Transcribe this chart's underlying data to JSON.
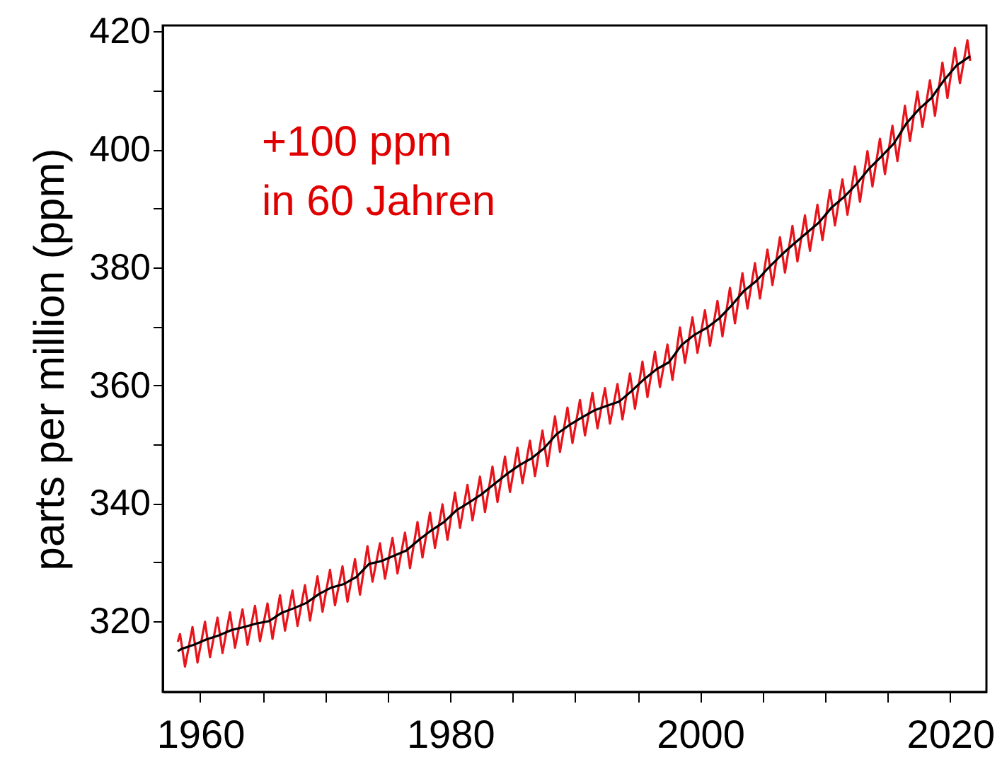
{
  "chart_data": {
    "type": "line",
    "ylabel": "parts per million (ppm)",
    "annotations": [
      "+100 ppm\nin 60 Jahren"
    ],
    "xlim": [
      1957,
      2022.9
    ],
    "ylim": [
      308,
      421
    ],
    "xticks": [
      1960,
      {
        "value": 1965,
        "label": null
      },
      {
        "value": 1970,
        "label": null
      },
      {
        "value": 1975,
        "label": null
      },
      1980,
      {
        "value": 1985,
        "label": null
      },
      {
        "value": 1990,
        "label": null
      },
      {
        "value": 1995,
        "label": null
      },
      2000,
      {
        "value": 2005,
        "label": null
      },
      {
        "value": 2010,
        "label": null
      },
      {
        "value": 2015,
        "label": null
      },
      2020
    ],
    "yticks": [
      320,
      {
        "value": 330,
        "label": null
      },
      340,
      {
        "value": 350,
        "label": null
      },
      360,
      {
        "value": 370,
        "label": null
      },
      380,
      {
        "value": 390,
        "label": null
      },
      400,
      {
        "value": 410,
        "label": null
      },
      420
    ],
    "grid": false,
    "series": [
      {
        "color": "#e8141b",
        "x": [
          1958.2,
          1958.38,
          1958.78,
          1959.38,
          1959.78,
          1960.38,
          1960.78,
          1961.38,
          1961.78,
          1962.38,
          1962.78,
          1963.38,
          1963.78,
          1964.38,
          1964.78,
          1965.38,
          1965.78,
          1966.38,
          1966.78,
          1967.38,
          1967.78,
          1968.38,
          1968.78,
          1969.38,
          1969.78,
          1970.38,
          1970.78,
          1971.38,
          1971.78,
          1972.38,
          1972.78,
          1973.38,
          1973.78,
          1974.38,
          1974.78,
          1975.38,
          1975.78,
          1976.38,
          1976.78,
          1977.38,
          1977.78,
          1978.38,
          1978.78,
          1979.38,
          1979.78,
          1980.38,
          1980.78,
          1981.38,
          1981.78,
          1982.38,
          1982.78,
          1983.38,
          1983.78,
          1984.38,
          1984.78,
          1985.38,
          1985.78,
          1986.38,
          1986.78,
          1987.38,
          1987.78,
          1988.38,
          1988.78,
          1989.38,
          1989.78,
          1990.38,
          1990.78,
          1991.38,
          1991.78,
          1992.38,
          1992.78,
          1993.38,
          1993.78,
          1994.38,
          1994.78,
          1995.38,
          1995.78,
          1996.38,
          1996.78,
          1997.38,
          1997.78,
          1998.38,
          1998.78,
          1999.38,
          1999.78,
          2000.38,
          2000.78,
          2001.38,
          2001.78,
          2002.38,
          2002.78,
          2003.38,
          2003.78,
          2004.38,
          2004.78,
          2005.38,
          2005.78,
          2006.38,
          2006.78,
          2007.38,
          2007.78,
          2008.38,
          2008.78,
          2009.38,
          2009.78,
          2010.38,
          2010.78,
          2011.38,
          2011.78,
          2012.38,
          2012.78,
          2013.38,
          2013.78,
          2014.38,
          2014.78,
          2015.38,
          2015.78,
          2016.38,
          2016.78,
          2017.38,
          2017.78,
          2018.38,
          2018.78,
          2019.38,
          2019.78,
          2020.38,
          2020.78,
          2021.38,
          2021.6
        ],
        "values": [
          316.5,
          317.8,
          312.3,
          319.0,
          313.0,
          319.9,
          313.9,
          320.6,
          314.6,
          321.5,
          315.5,
          322.0,
          316.0,
          322.6,
          316.6,
          323.0,
          317.0,
          324.4,
          318.4,
          325.2,
          319.2,
          326.1,
          320.1,
          327.6,
          321.6,
          328.7,
          322.7,
          329.3,
          323.3,
          330.5,
          324.5,
          332.7,
          326.7,
          333.2,
          327.2,
          334.1,
          328.1,
          335.0,
          329.0,
          336.8,
          330.8,
          338.4,
          332.4,
          339.8,
          333.8,
          341.8,
          335.8,
          343.1,
          337.1,
          344.5,
          338.5,
          346.2,
          340.2,
          347.9,
          341.9,
          349.4,
          343.4,
          350.6,
          344.6,
          352.3,
          346.3,
          354.7,
          348.7,
          356.2,
          350.2,
          357.5,
          351.5,
          358.7,
          352.7,
          359.5,
          353.5,
          360.2,
          354.2,
          362.0,
          356.0,
          364.0,
          358.0,
          365.7,
          359.7,
          366.9,
          360.9,
          369.8,
          363.8,
          371.5,
          365.5,
          372.7,
          366.7,
          374.3,
          368.3,
          376.5,
          370.5,
          379.0,
          373.0,
          380.7,
          374.7,
          383.0,
          377.0,
          385.1,
          379.1,
          387.0,
          381.0,
          388.8,
          382.8,
          390.6,
          384.6,
          393.1,
          387.1,
          394.9,
          388.9,
          397.1,
          391.1,
          399.7,
          393.7,
          401.8,
          395.8,
          404.0,
          398.0,
          407.4,
          401.4,
          409.8,
          403.8,
          411.7,
          405.7,
          414.7,
          408.7,
          417.2,
          411.2,
          418.5,
          415.0
        ]
      },
      {
        "color": "#000000",
        "x": [
          1958.2,
          1958.5,
          1959.5,
          1960.5,
          1961.5,
          1962.5,
          1963.5,
          1964.5,
          1965.5,
          1966.5,
          1967.5,
          1968.5,
          1969.5,
          1970.5,
          1971.5,
          1972.5,
          1973.5,
          1974.5,
          1975.5,
          1976.5,
          1977.5,
          1978.5,
          1979.5,
          1980.5,
          1981.5,
          1982.5,
          1983.5,
          1984.5,
          1985.5,
          1986.5,
          1987.5,
          1988.5,
          1989.5,
          1990.5,
          1991.5,
          1992.5,
          1993.5,
          1994.5,
          1995.5,
          1996.5,
          1997.5,
          1998.5,
          1999.5,
          2000.5,
          2001.5,
          2002.5,
          2003.5,
          2004.5,
          2005.5,
          2006.5,
          2007.5,
          2008.5,
          2009.5,
          2010.5,
          2011.5,
          2012.5,
          2013.5,
          2014.5,
          2015.5,
          2016.5,
          2017.5,
          2018.5,
          2019.5,
          2020.5,
          2021.6
        ],
        "values": [
          314.9,
          315.3,
          316.0,
          316.9,
          317.6,
          318.5,
          319.0,
          319.6,
          320.0,
          321.4,
          322.2,
          323.1,
          324.6,
          325.7,
          326.3,
          327.5,
          329.7,
          330.2,
          331.1,
          332.0,
          333.8,
          335.4,
          336.8,
          338.8,
          340.1,
          341.5,
          343.2,
          344.9,
          346.4,
          347.6,
          349.3,
          351.7,
          353.2,
          354.5,
          355.7,
          356.5,
          357.2,
          359.0,
          361.0,
          362.7,
          363.9,
          366.8,
          368.5,
          369.7,
          371.3,
          373.5,
          376.0,
          377.7,
          380.0,
          382.1,
          384.0,
          385.8,
          387.6,
          390.1,
          391.9,
          394.1,
          396.7,
          398.8,
          401.0,
          404.4,
          406.8,
          408.7,
          411.7,
          414.2,
          415.8
        ]
      }
    ]
  }
}
